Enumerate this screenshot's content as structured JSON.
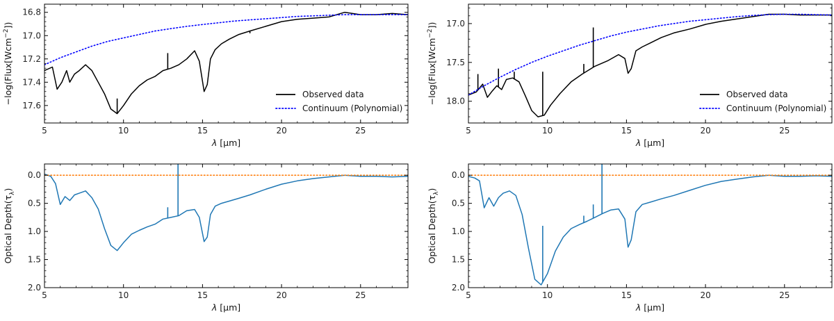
{
  "figure": {
    "panel_count": 4
  },
  "colors": {
    "observed": "#000000",
    "continuum": "#0000ff",
    "tau": "#1f77b4",
    "zero_line": "#ff7f0e"
  },
  "chart_data": [
    {
      "id": "top-left",
      "type": "line",
      "xlabel_sym": "λ",
      "xlabel_unit": " [μm]",
      "ylabel_pre": "−log(Flux[Wcm",
      "ylabel_sup": "−2",
      "ylabel_post": "])",
      "xlim": [
        5,
        28
      ],
      "ylim": [
        17.75,
        16.73
      ],
      "y_inverted": true,
      "xticks": [
        5,
        10,
        15,
        20,
        25
      ],
      "xtick_labels": [
        "5",
        "10",
        "15",
        "20",
        "25"
      ],
      "yticks": [
        16.8,
        17.0,
        17.2,
        17.4,
        17.6
      ],
      "ytick_labels": [
        "16.8",
        "17.0",
        "17.2",
        "17.4",
        "17.6"
      ],
      "legend": {
        "position": "lower-right",
        "entries": [
          "Observed data",
          "Continuum (Polynomial)"
        ]
      },
      "series": [
        {
          "name": "Observed data",
          "style": "solid",
          "color": "#000000",
          "x": [
            5.0,
            5.5,
            5.8,
            6.1,
            6.4,
            6.6,
            6.9,
            7.2,
            7.6,
            8.0,
            8.4,
            8.8,
            9.2,
            9.6,
            10.0,
            10.5,
            11.0,
            11.5,
            12.0,
            12.5,
            13.0,
            13.5,
            14.0,
            14.5,
            14.8,
            15.1,
            15.3,
            15.5,
            15.8,
            16.2,
            16.7,
            17.3,
            18.0,
            19.0,
            20.0,
            21.0,
            22.0,
            23.0,
            24.0,
            25.0,
            26.0,
            27.0,
            28.0
          ],
          "y": [
            17.3,
            17.27,
            17.46,
            17.4,
            17.3,
            17.4,
            17.33,
            17.3,
            17.25,
            17.3,
            17.4,
            17.5,
            17.63,
            17.67,
            17.6,
            17.5,
            17.43,
            17.38,
            17.35,
            17.3,
            17.28,
            17.25,
            17.2,
            17.13,
            17.22,
            17.48,
            17.42,
            17.2,
            17.12,
            17.07,
            17.03,
            16.99,
            16.96,
            16.92,
            16.88,
            16.86,
            16.85,
            16.84,
            16.8,
            16.82,
            16.82,
            16.81,
            16.82
          ],
          "spikes": [
            {
              "x": 12.8,
              "y": 17.15
            },
            {
              "x": 18.0,
              "y": 16.98
            },
            {
              "x": 9.6,
              "y": 17.54
            }
          ]
        },
        {
          "name": "Continuum (Polynomial)",
          "style": "dotted",
          "color": "#0000ff",
          "x": [
            5,
            6,
            7,
            8,
            9,
            10,
            11,
            12,
            13,
            14,
            15,
            16,
            17,
            18,
            19,
            20,
            21,
            22,
            23,
            24,
            25,
            26,
            27,
            28
          ],
          "y": [
            17.25,
            17.19,
            17.14,
            17.09,
            17.05,
            17.02,
            16.99,
            16.96,
            16.94,
            16.92,
            16.905,
            16.89,
            16.875,
            16.865,
            16.855,
            16.845,
            16.835,
            16.83,
            16.825,
            16.82,
            16.82,
            16.82,
            16.82,
            16.82
          ]
        }
      ]
    },
    {
      "id": "top-right",
      "type": "line",
      "xlabel_sym": "λ",
      "xlabel_unit": " [μm]",
      "ylabel_pre": "−log(Flux[Wcm",
      "ylabel_sup": "−2",
      "ylabel_post": "])",
      "xlim": [
        5,
        28
      ],
      "ylim": [
        18.28,
        16.75
      ],
      "y_inverted": true,
      "xticks": [
        5,
        10,
        15,
        20,
        25
      ],
      "xtick_labels": [
        "5",
        "10",
        "15",
        "20",
        "25"
      ],
      "yticks": [
        17.0,
        17.5,
        18.0
      ],
      "ytick_labels": [
        "17.0",
        "17.5",
        "18.0"
      ],
      "legend": {
        "position": "lower-right",
        "entries": [
          "Observed data",
          "Continuum (Polynomial)"
        ]
      },
      "series": [
        {
          "name": "Observed data",
          "style": "solid",
          "color": "#000000",
          "x": [
            5.0,
            5.5,
            5.9,
            6.2,
            6.5,
            6.8,
            7.1,
            7.4,
            7.8,
            8.2,
            8.6,
            9.0,
            9.4,
            9.8,
            10.2,
            10.8,
            11.5,
            12.2,
            13.0,
            13.8,
            14.5,
            14.9,
            15.1,
            15.3,
            15.6,
            16.0,
            16.5,
            17.2,
            18.0,
            19.0,
            20.0,
            21.0,
            22.0,
            23.0,
            24.0,
            25.0,
            26.0,
            27.0,
            28.0
          ],
          "y": [
            17.92,
            17.88,
            17.78,
            17.95,
            17.87,
            17.8,
            17.85,
            17.72,
            17.7,
            17.75,
            17.93,
            18.12,
            18.2,
            18.18,
            18.05,
            17.9,
            17.75,
            17.65,
            17.55,
            17.48,
            17.4,
            17.45,
            17.64,
            17.58,
            17.35,
            17.3,
            17.25,
            17.18,
            17.12,
            17.07,
            17.01,
            16.97,
            16.94,
            16.91,
            16.88,
            16.88,
            16.89,
            16.89,
            16.89
          ],
          "spikes": [
            {
              "x": 5.6,
              "y": 17.65
            },
            {
              "x": 6.9,
              "y": 17.58
            },
            {
              "x": 7.9,
              "y": 17.62
            },
            {
              "x": 9.7,
              "y": 17.62
            },
            {
              "x": 12.3,
              "y": 17.52
            },
            {
              "x": 12.9,
              "y": 17.05
            }
          ]
        },
        {
          "name": "Continuum (Polynomial)",
          "style": "dotted",
          "color": "#0000ff",
          "x": [
            5,
            6,
            7,
            8,
            9,
            10,
            11,
            12,
            13,
            14,
            15,
            16,
            17,
            18,
            19,
            20,
            21,
            22,
            23,
            24,
            25,
            26,
            27,
            28
          ],
          "y": [
            17.92,
            17.8,
            17.69,
            17.59,
            17.5,
            17.42,
            17.35,
            17.28,
            17.22,
            17.16,
            17.11,
            17.07,
            17.03,
            17.0,
            16.97,
            16.95,
            16.93,
            16.91,
            16.895,
            16.885,
            16.88,
            16.88,
            16.885,
            16.89
          ]
        }
      ]
    },
    {
      "id": "bottom-left",
      "type": "line",
      "xlabel_sym": "λ",
      "xlabel_unit": " [μm]",
      "ylabel_pre": "Optical Depth(τ",
      "ylabel_sub": "λ",
      "ylabel_post": ")",
      "xlim": [
        5,
        28
      ],
      "ylim": [
        2.0,
        -0.2
      ],
      "y_inverted": true,
      "xticks": [
        5,
        10,
        15,
        20,
        25
      ],
      "xtick_labels": [
        "5",
        "10",
        "15",
        "20",
        "25"
      ],
      "yticks": [
        0.0,
        0.5,
        1.0,
        1.5,
        2.0
      ],
      "ytick_labels": [
        "0.0",
        "0.5",
        "1.0",
        "1.5",
        "2.0"
      ],
      "series": [
        {
          "name": "Optical Depth",
          "style": "solid",
          "color": "#1f77b4",
          "x": [
            5.0,
            5.4,
            5.7,
            6.0,
            6.3,
            6.6,
            6.9,
            7.2,
            7.6,
            8.0,
            8.4,
            8.8,
            9.2,
            9.6,
            10.0,
            10.5,
            11.0,
            11.5,
            12.0,
            12.5,
            13.0,
            13.5,
            14.0,
            14.5,
            14.8,
            15.1,
            15.3,
            15.5,
            15.8,
            16.2,
            16.7,
            17.3,
            18.0,
            19.0,
            20.0,
            21.0,
            22.0,
            23.0,
            24.0,
            25.0,
            26.0,
            27.0,
            28.0
          ],
          "y": [
            -0.02,
            0.02,
            0.15,
            0.52,
            0.38,
            0.45,
            0.35,
            0.32,
            0.28,
            0.4,
            0.6,
            0.95,
            1.25,
            1.34,
            1.2,
            1.05,
            0.98,
            0.92,
            0.87,
            0.78,
            0.75,
            0.72,
            0.63,
            0.61,
            0.75,
            1.18,
            1.1,
            0.7,
            0.55,
            0.5,
            0.46,
            0.41,
            0.35,
            0.25,
            0.16,
            0.1,
            0.06,
            0.03,
            0.0,
            0.02,
            0.02,
            0.03,
            0.02
          ],
          "spikes": [
            {
              "x": 12.8,
              "y": 0.57
            },
            {
              "x": 13.45,
              "y": -0.2
            }
          ]
        },
        {
          "name": "Zero level",
          "style": "dotted",
          "color": "#ff7f0e",
          "x": [
            5,
            28
          ],
          "y": [
            0,
            0
          ]
        }
      ]
    },
    {
      "id": "bottom-right",
      "type": "line",
      "xlabel_sym": "λ",
      "xlabel_unit": " [μm]",
      "ylabel_pre": "Optical Depth(τ",
      "ylabel_sub": "λ",
      "ylabel_post": ")",
      "xlim": [
        5,
        28
      ],
      "ylim": [
        2.0,
        -0.2
      ],
      "y_inverted": true,
      "xticks": [
        5,
        10,
        15,
        20,
        25
      ],
      "xtick_labels": [
        "5",
        "10",
        "15",
        "20",
        "25"
      ],
      "yticks": [
        0.0,
        0.5,
        1.0,
        1.5,
        2.0
      ],
      "ytick_labels": [
        "0.0",
        "0.5",
        "1.0",
        "1.5",
        "2.0"
      ],
      "series": [
        {
          "name": "Optical Depth",
          "style": "solid",
          "color": "#1f77b4",
          "x": [
            5.0,
            5.4,
            5.7,
            6.0,
            6.3,
            6.6,
            6.9,
            7.2,
            7.6,
            8.0,
            8.4,
            8.8,
            9.2,
            9.6,
            10.0,
            10.5,
            11.0,
            11.5,
            12.0,
            12.5,
            13.0,
            13.5,
            14.0,
            14.5,
            14.9,
            15.1,
            15.3,
            15.6,
            16.0,
            16.5,
            17.2,
            18.0,
            19.0,
            20.0,
            21.0,
            22.0,
            23.0,
            24.0,
            25.0,
            26.0,
            27.0,
            28.0
          ],
          "y": [
            0.02,
            0.05,
            0.1,
            0.58,
            0.4,
            0.55,
            0.4,
            0.32,
            0.28,
            0.36,
            0.7,
            1.3,
            1.85,
            1.95,
            1.75,
            1.35,
            1.1,
            0.95,
            0.88,
            0.82,
            0.75,
            0.68,
            0.62,
            0.6,
            0.78,
            1.28,
            1.15,
            0.65,
            0.52,
            0.48,
            0.42,
            0.36,
            0.27,
            0.18,
            0.11,
            0.07,
            0.03,
            0.0,
            0.02,
            0.02,
            0.01,
            0.02
          ],
          "spikes": [
            {
              "x": 9.7,
              "y": 0.9
            },
            {
              "x": 12.3,
              "y": 0.72
            },
            {
              "x": 12.9,
              "y": 0.52
            },
            {
              "x": 13.45,
              "y": -0.2
            }
          ]
        },
        {
          "name": "Zero level",
          "style": "dotted",
          "color": "#ff7f0e",
          "x": [
            5,
            28
          ],
          "y": [
            0,
            0
          ]
        }
      ]
    }
  ]
}
